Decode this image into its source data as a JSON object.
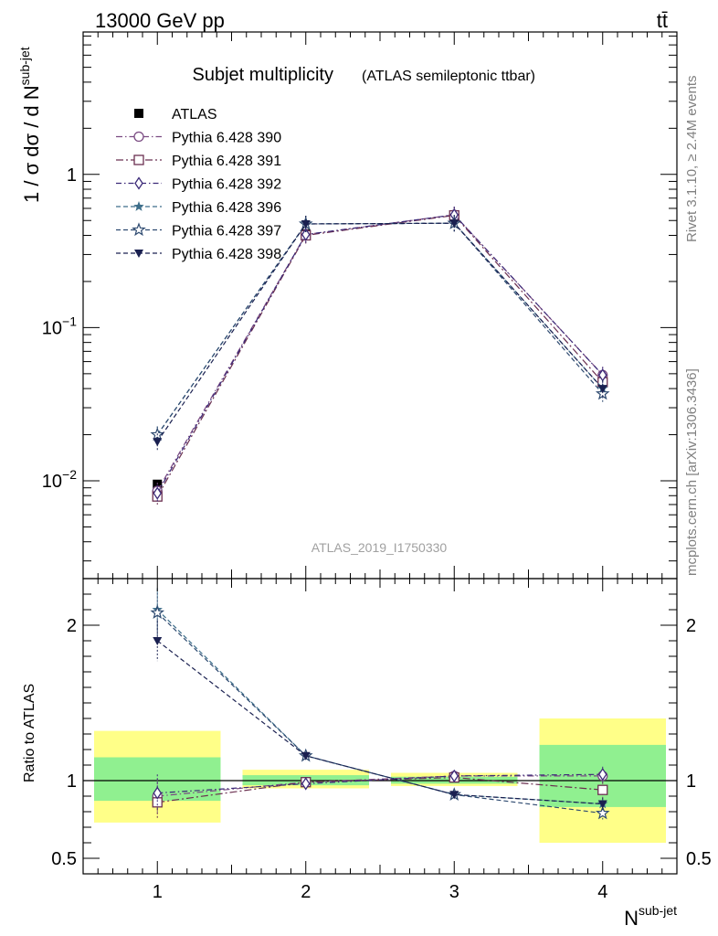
{
  "header": {
    "left": "13000 GeV pp",
    "right": "tt̄"
  },
  "side_labels": {
    "rivet": "Rivet 3.1.10, ≥ 2.4M events",
    "mcplots": "mcplots.cern.ch [arXiv:1306.3436]"
  },
  "chart_data": [
    {
      "type": "line",
      "title": "Subjet multiplicity",
      "subtitle": "(ATLAS semileptonic ttbar)",
      "ylabel": "1 / σ dσ / d N",
      "ylabel_sup": "sub-jet",
      "yscale": "log",
      "ylim": [
        0.0023,
        8.5
      ],
      "xlim": [
        0.5,
        4.5
      ],
      "grid": false,
      "legend_position": "top-left",
      "watermark": "ATLAS_2019_I1750330",
      "x": [
        1,
        2,
        3,
        4
      ],
      "xticks": [
        "1",
        "2",
        "3",
        "4"
      ],
      "yticks": [
        {
          "value": 1,
          "label": "1"
        },
        {
          "value": 0.1,
          "label": "10",
          "exp": "−1"
        },
        {
          "value": 0.01,
          "label": "10",
          "exp": "−2"
        }
      ],
      "series": [
        {
          "name": "ATLAS",
          "color": "#000000",
          "marker": "square-filled",
          "dash": "",
          "values": [
            0.0095,
            0.41,
            0.53,
            0.047
          ]
        },
        {
          "name": "Pythia 6.428 390",
          "color": "#7a4a82",
          "marker": "circle-open",
          "dash": "7,3,1.5,3",
          "values": [
            0.0086,
            0.405,
            0.545,
            0.049
          ]
        },
        {
          "name": "Pythia 6.428 391",
          "color": "#6b3050",
          "marker": "square-open",
          "dash": "8,3,2,3",
          "values": [
            0.0079,
            0.4,
            0.54,
            0.044
          ]
        },
        {
          "name": "Pythia 6.428 392",
          "color": "#3c2a78",
          "marker": "diamond-open",
          "dash": "6,3,1.5,3",
          "values": [
            0.0083,
            0.405,
            0.545,
            0.049
          ]
        },
        {
          "name": "Pythia 6.428 396",
          "color": "#3d6e8a",
          "marker": "star-filled",
          "dash": "5,3",
          "values": [
            0.02,
            0.475,
            0.48,
            0.04
          ]
        },
        {
          "name": "Pythia 6.428 397",
          "color": "#2e4a70",
          "marker": "star-open",
          "dash": "5,3",
          "values": [
            0.02,
            0.475,
            0.48,
            0.037
          ]
        },
        {
          "name": "Pythia 6.428 398",
          "color": "#1a2050",
          "marker": "triangle-down-filled",
          "dash": "5,3",
          "values": [
            0.018,
            0.475,
            0.48,
            0.04
          ]
        }
      ]
    },
    {
      "type": "line",
      "ylabel": "Ratio to ATLAS",
      "xlabel": "N",
      "xlabel_sup": "sub-jet",
      "ylim": [
        0.4,
        2.3
      ],
      "xlim": [
        0.5,
        4.5
      ],
      "reference_line": 1,
      "yticks": [
        {
          "value": 0.5,
          "label": "0.5"
        },
        {
          "value": 1,
          "label": "1"
        },
        {
          "value": 2,
          "label": "2"
        }
      ],
      "bands": [
        {
          "x0": 0.5,
          "x1": 1.5,
          "yellow": [
            0.73,
            1.32
          ],
          "green": [
            0.87,
            1.15
          ]
        },
        {
          "x0": 1.5,
          "x1": 2.5,
          "yellow": [
            0.95,
            1.07
          ],
          "green": [
            0.97,
            1.035
          ]
        },
        {
          "x0": 2.5,
          "x1": 3.5,
          "yellow": [
            0.965,
            1.05
          ],
          "green": [
            0.98,
            1.025
          ]
        },
        {
          "x0": 3.5,
          "x1": 4.5,
          "yellow": [
            0.6,
            1.4
          ],
          "green": [
            0.83,
            1.23
          ]
        }
      ],
      "series": [
        {
          "name": "Pythia 6.428 390",
          "values": [
            0.9,
            0.99,
            1.03,
            1.03
          ],
          "errors": [
            0.11,
            0.01,
            0.01,
            0.04
          ]
        },
        {
          "name": "Pythia 6.428 391",
          "values": [
            0.86,
            0.99,
            1.02,
            0.94
          ],
          "errors": [
            0.1,
            0.01,
            0.01,
            0.05
          ]
        },
        {
          "name": "Pythia 6.428 392",
          "values": [
            0.92,
            0.98,
            1.03,
            1.04
          ],
          "errors": [
            0.12,
            0.01,
            0.01,
            0.05
          ]
        },
        {
          "name": "Pythia 6.428 396",
          "values": [
            2.1,
            1.16,
            0.91,
            0.85
          ],
          "errors": [
            0.14,
            0.02,
            0.01,
            0.04
          ]
        },
        {
          "name": "Pythia 6.428 397",
          "values": [
            2.08,
            1.16,
            0.91,
            0.79
          ],
          "errors": [
            0.15,
            0.02,
            0.01,
            0.04
          ]
        },
        {
          "name": "Pythia 6.428 398",
          "values": [
            1.9,
            1.16,
            0.91,
            0.85
          ],
          "errors": [
            0.13,
            0.02,
            0.01,
            0.04
          ]
        }
      ]
    }
  ]
}
